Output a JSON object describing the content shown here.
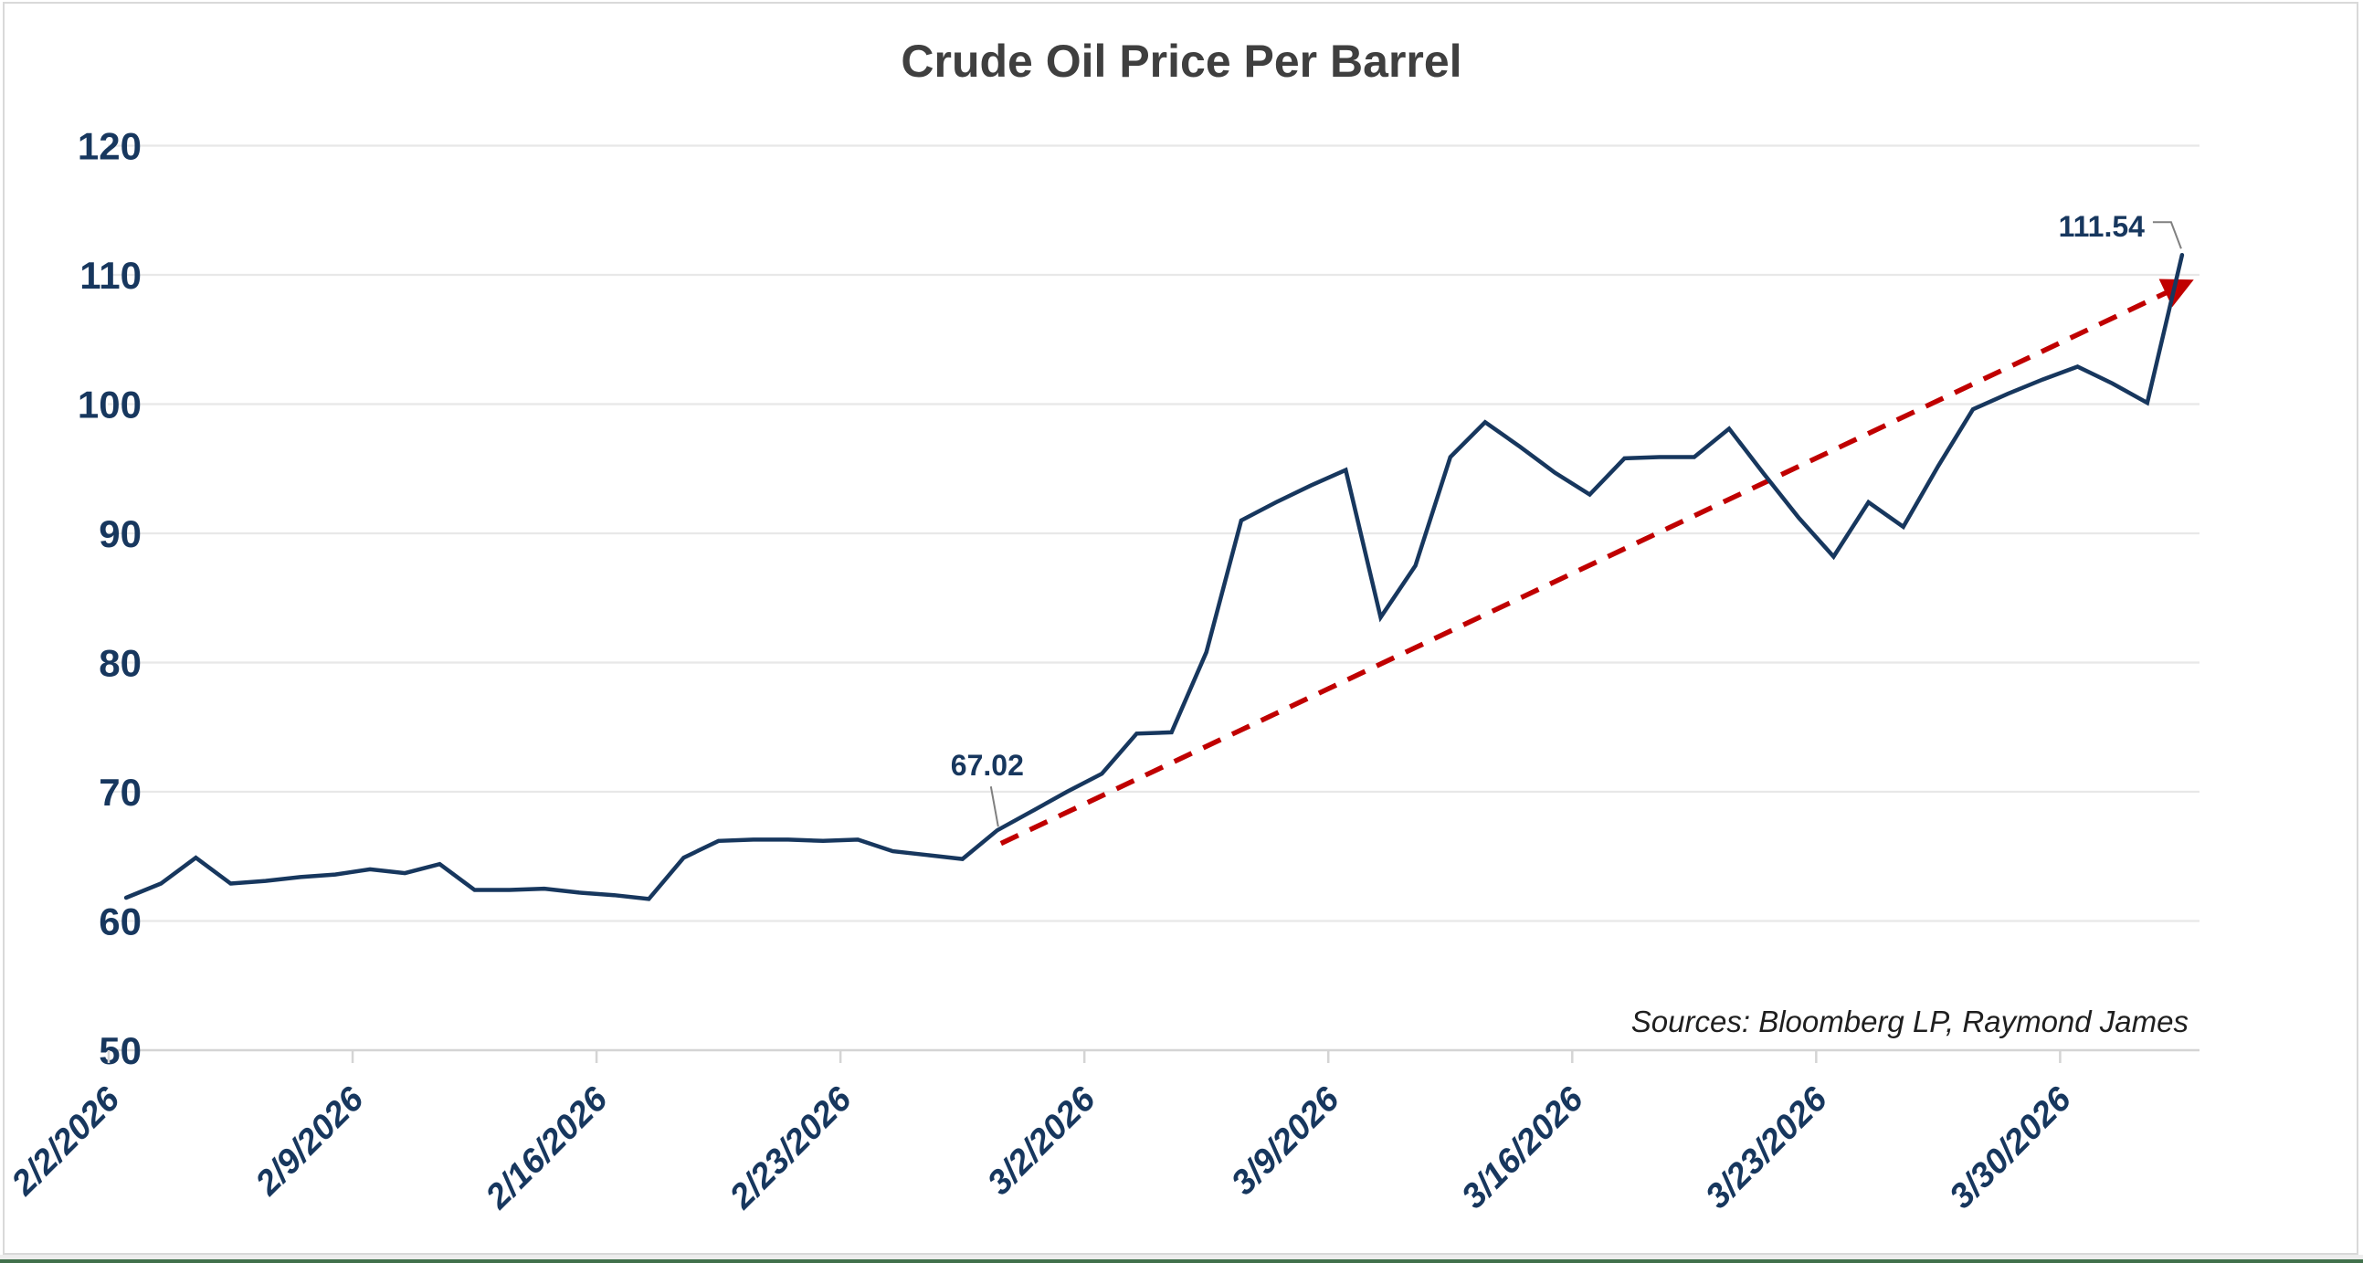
{
  "chart_data": {
    "type": "line",
    "title": "Crude Oil Price Per Barrel",
    "source_note": "Sources: Bloomberg LP, Raymond James",
    "xlabel": "",
    "ylabel": "",
    "ylim": [
      50,
      120
    ],
    "y_ticks": [
      50,
      60,
      70,
      80,
      90,
      100,
      110,
      120
    ],
    "x_tick_labels": [
      "2/2/2026",
      "2/9/2026",
      "2/16/2026",
      "2/23/2026",
      "3/2/2026",
      "3/9/2026",
      "3/16/2026",
      "3/23/2026",
      "3/30/2026"
    ],
    "grid": "horizontal",
    "legend": "none",
    "series": [
      {
        "name": "Crude Oil Price Per Barrel",
        "dates": [
          "2/2/2026",
          "2/3/2026",
          "2/4/2026",
          "2/5/2026",
          "2/6/2026",
          "2/7/2026",
          "2/8/2026",
          "2/9/2026",
          "2/10/2026",
          "2/11/2026",
          "2/12/2026",
          "2/13/2026",
          "2/14/2026",
          "2/15/2026",
          "2/16/2026",
          "2/17/2026",
          "2/18/2026",
          "2/19/2026",
          "2/20/2026",
          "2/21/2026",
          "2/22/2026",
          "2/23/2026",
          "2/24/2026",
          "2/25/2026",
          "2/26/2026",
          "2/27/2026",
          "2/28/2026",
          "3/1/2026",
          "3/2/2026",
          "3/3/2026",
          "3/4/2026",
          "3/5/2026",
          "3/6/2026",
          "3/7/2026",
          "3/8/2026",
          "3/9/2026",
          "3/10/2026",
          "3/11/2026",
          "3/12/2026",
          "3/13/2026",
          "3/14/2026",
          "3/15/2026",
          "3/16/2026",
          "3/17/2026",
          "3/18/2026",
          "3/19/2026",
          "3/20/2026",
          "3/21/2026",
          "3/22/2026",
          "3/23/2026",
          "3/24/2026",
          "3/25/2026",
          "3/26/2026",
          "3/27/2026",
          "3/28/2026",
          "3/29/2026",
          "3/30/2026",
          "3/31/2026",
          "4/1/2026",
          "4/2/2026"
        ],
        "values": [
          61.8,
          62.9,
          64.9,
          62.9,
          63.1,
          63.4,
          63.6,
          64.0,
          63.7,
          64.4,
          62.4,
          62.4,
          62.5,
          62.2,
          62.0,
          61.7,
          64.9,
          66.2,
          66.3,
          66.3,
          66.2,
          66.3,
          65.4,
          65.1,
          64.8,
          67.02,
          68.5,
          70.0,
          71.4,
          74.5,
          74.6,
          80.8,
          91.0,
          92.4,
          93.7,
          94.9,
          83.5,
          87.5,
          95.9,
          98.6,
          96.7,
          94.7,
          93.0,
          95.8,
          95.9,
          95.9,
          98.1,
          94.6,
          91.2,
          88.2,
          92.4,
          90.5,
          95.2,
          99.6,
          100.8,
          101.9,
          102.9,
          101.6,
          100.1,
          111.54
        ]
      }
    ],
    "annotations": [
      {
        "label": "67.02",
        "date": "2/27/2026",
        "value": 67.02
      },
      {
        "label": "111.54",
        "date": "4/2/2026",
        "value": 111.54
      }
    ],
    "trendline": {
      "style": "dashed",
      "arrow": true,
      "start_date": "2/27/2026",
      "start_value": 66.0,
      "end_date": "4/2/2026",
      "end_value": 109.7
    },
    "colors": {
      "line": "#17375E",
      "trend": "#C00000",
      "grid": "#E8E8E8",
      "axis": "#D4D4D4",
      "labels": "#17375E",
      "title": "#3F3F3F",
      "source": "#1F1F1F",
      "leader": "#808080",
      "frame_border": "#D9D9D9",
      "bottom_bar": "#41704B"
    }
  }
}
